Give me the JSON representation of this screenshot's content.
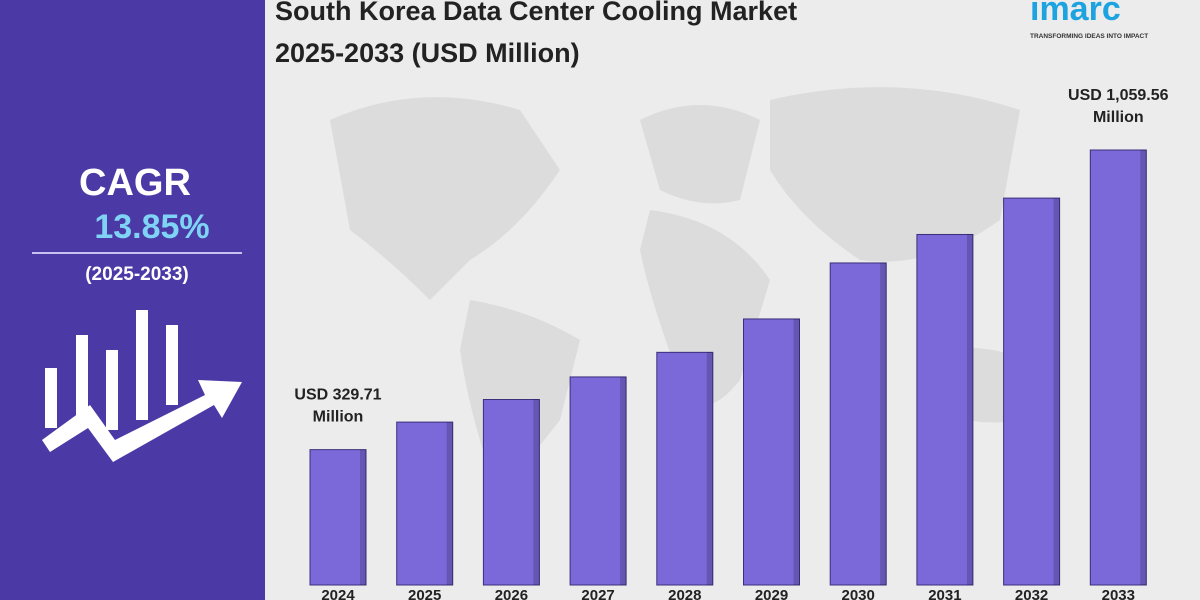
{
  "chart_data": {
    "type": "bar",
    "title": "South Korea Data Center Cooling Market",
    "subtitle": "2025-2033 (USD Million)",
    "categories": [
      "2024",
      "2025",
      "2026",
      "2027",
      "2028",
      "2029",
      "2030",
      "2031",
      "2032",
      "2033"
    ],
    "values": [
      329.71,
      396.8,
      451.8,
      506.8,
      566.7,
      648.0,
      784.4,
      853.8,
      942.4,
      1059.56
    ],
    "value_labels": [
      "USD 329.71 Million",
      null,
      null,
      null,
      null,
      null,
      null,
      null,
      null,
      "USD 1,059.56 Million"
    ],
    "color": "#7b69d9"
  },
  "sidebar": {
    "heading": "CAGR",
    "cagr": "13.85%",
    "period": "(2025-2033)"
  },
  "logo": {
    "name": "imarc",
    "tagline": "TRANSFORMING IDEAS INTO IMPACT"
  }
}
